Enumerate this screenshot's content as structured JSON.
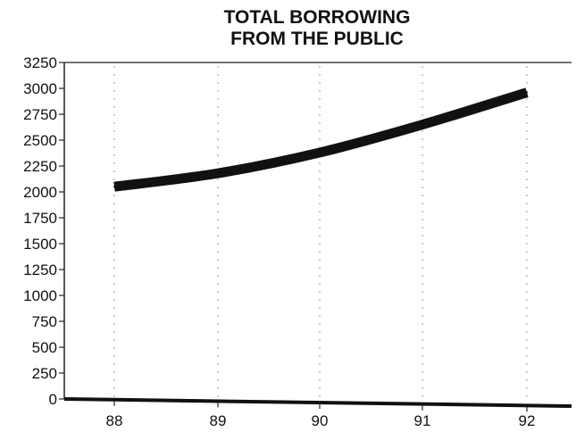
{
  "chart_data": {
    "type": "line",
    "title_lines": [
      "TOTAL BORROWING",
      "FROM THE PUBLIC"
    ],
    "xlabel": "",
    "ylabel": "",
    "categories": [
      "88",
      "89",
      "90",
      "91",
      "92"
    ],
    "series": [
      {
        "values": [
          2050,
          2180,
          2380,
          2650,
          2960
        ]
      }
    ],
    "ylim": [
      0,
      3250
    ],
    "yticks": [
      0,
      250,
      500,
      750,
      1000,
      1250,
      1500,
      1750,
      2000,
      2250,
      2500,
      2750,
      3000,
      3250
    ],
    "grid": "vertical dotted",
    "legend": "none",
    "line_color": "#111111"
  }
}
